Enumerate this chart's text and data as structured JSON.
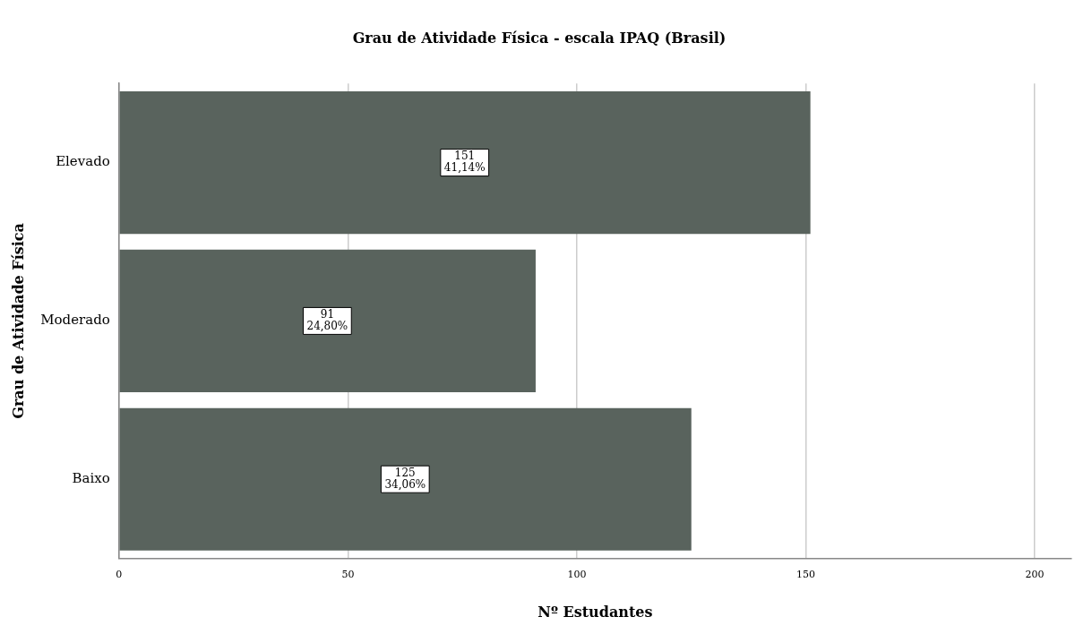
{
  "chart_data": {
    "type": "bar",
    "orientation": "horizontal",
    "title": "Grau de Atividade Física - escala IPAQ (Brasil)",
    "xlabel": "Nº Estudantes",
    "ylabel": "Grau de Atividade Física",
    "categories": [
      "Elevado",
      "Moderado",
      "Baixo"
    ],
    "values": [
      151,
      91,
      125
    ],
    "color": "#59635d",
    "value_labels": [
      "151\n41,14%",
      "91\n24,80%",
      "125\n34,06%"
    ],
    "xlim": [
      0,
      208
    ],
    "xticks": [
      0,
      50,
      100,
      150,
      200
    ],
    "grid": "x",
    "legend": false
  }
}
